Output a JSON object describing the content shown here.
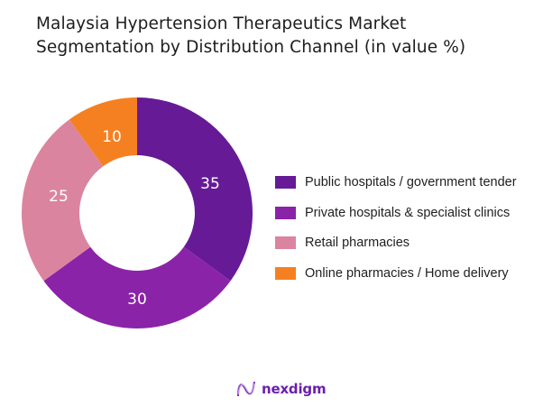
{
  "title": {
    "line1": "Malaysia Hypertension Therapeutics Market",
    "line2": "Segmentation by Distribution Channel (in value %)"
  },
  "chart_data": {
    "type": "pie",
    "subtype": "donut",
    "title": "Malaysia Hypertension Therapeutics Market Segmentation by Distribution Channel (in value %)",
    "categories": [
      "Public hospitals / government tender",
      "Private hospitals & specialist clinics",
      "Retail pharmacies",
      "Online pharmacies / Home delivery"
    ],
    "values": [
      35,
      30,
      25,
      10
    ],
    "colors": [
      "#661a96",
      "#8b23a8",
      "#db849f",
      "#f58022"
    ],
    "legend_position": "right",
    "data_labels": [
      "35",
      "30",
      "25",
      "10"
    ],
    "start_angle_deg": 0,
    "direction": "clockwise"
  },
  "legend": {
    "items": [
      {
        "label": "Public hospitals / government tender",
        "color": "#661a96"
      },
      {
        "label": "Private hospitals & specialist clinics",
        "color": "#8b23a8"
      },
      {
        "label": "Retail pharmacies",
        "color": "#db849f"
      },
      {
        "label": "Online pharmacies / Home delivery",
        "color": "#f58022"
      }
    ]
  },
  "labels": {
    "public": "35",
    "private": "30",
    "retail": "25",
    "online": "10"
  },
  "logo": {
    "text": "nexdigm",
    "icon": "nexdigm-wave-logo-icon",
    "color": "#6a1fb0"
  }
}
